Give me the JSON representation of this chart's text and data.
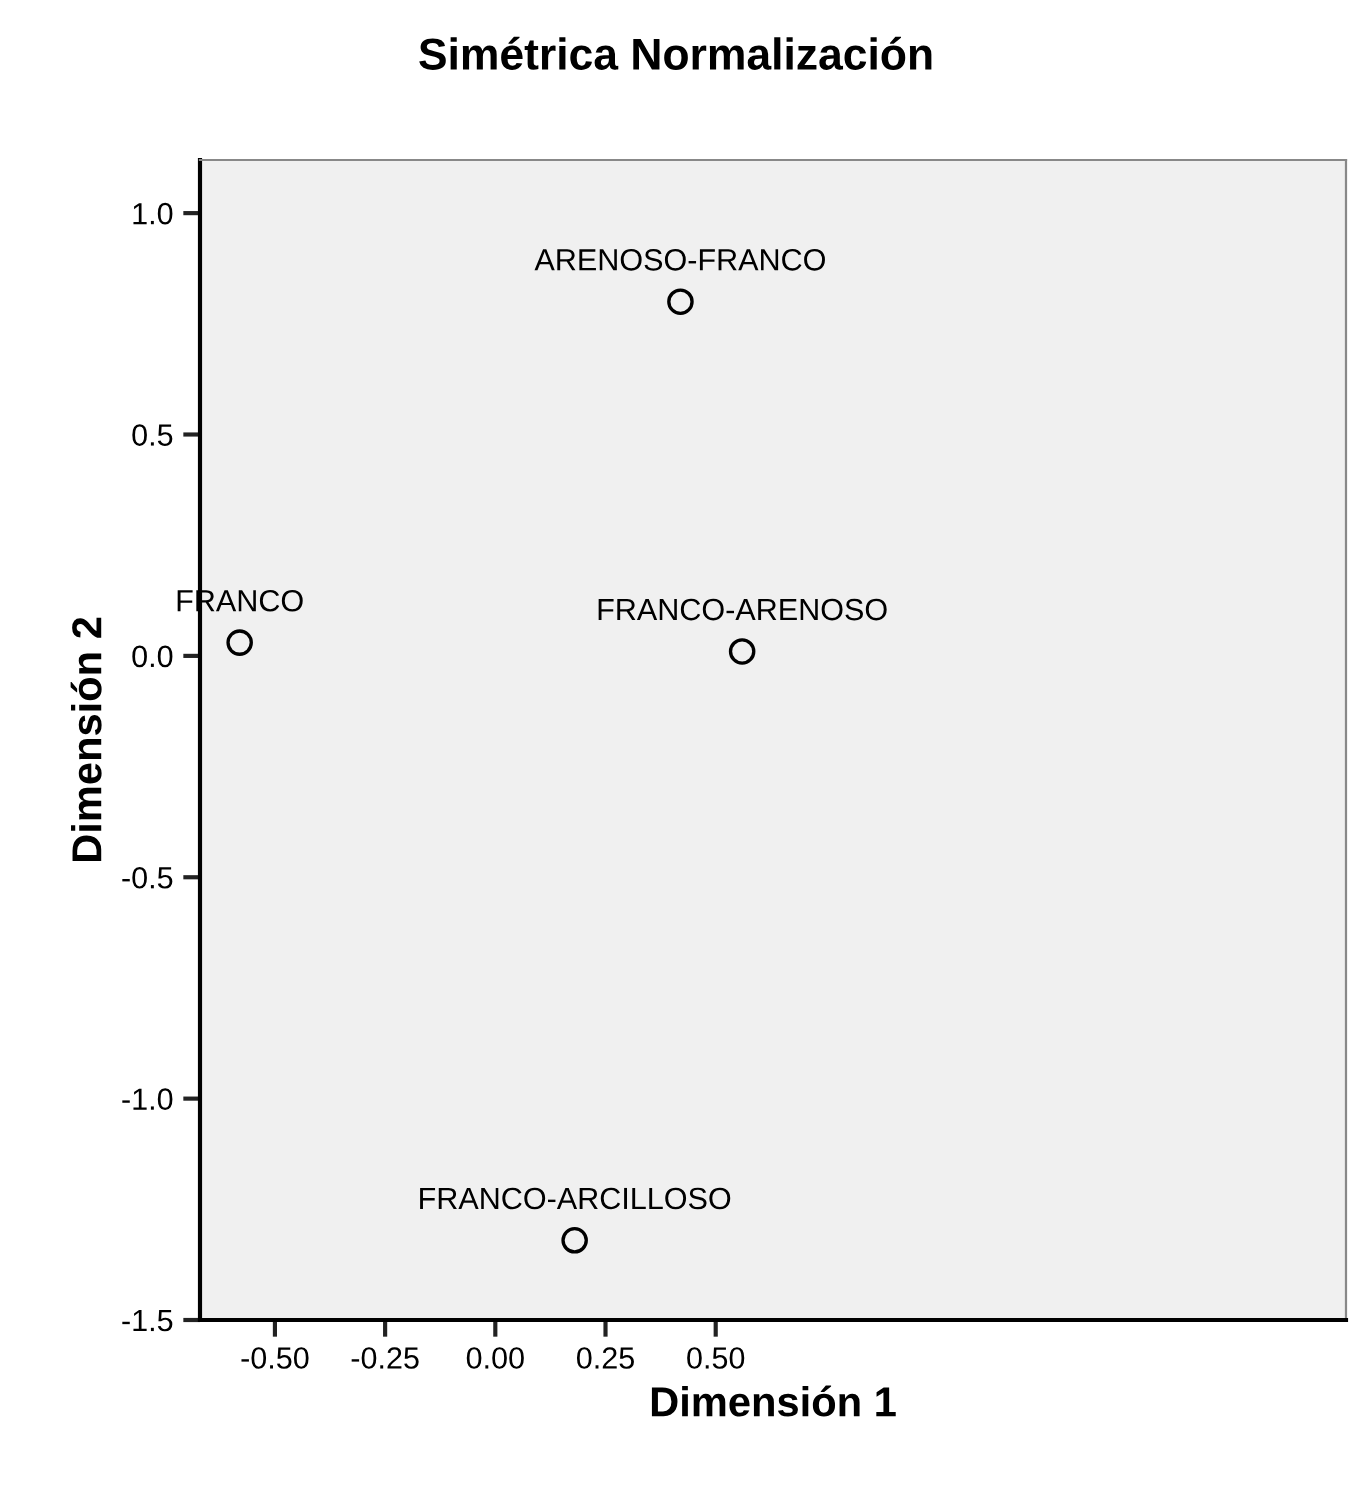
{
  "chart_data": {
    "type": "scatter",
    "title": "Simétrica Normalización",
    "xlabel": "Dimensión 1",
    "ylabel": "Dimensión 2",
    "x": [
      -0.58,
      0.42,
      0.56,
      0.18
    ],
    "series": [
      {
        "color": "#000000",
        "values": [
          0.03,
          0.8,
          0.01,
          -1.32
        ]
      }
    ],
    "annotations": [
      {
        "text": "FRANCO",
        "x": -0.58,
        "y": 0.03
      },
      {
        "text": "ARENOSO-FRANCO",
        "x": 0.42,
        "y": 0.8
      },
      {
        "text": "FRANCO-ARENOSO",
        "x": 0.56,
        "y": 0.01
      },
      {
        "text": "FRANCO-ARCILLOSO",
        "x": 0.18,
        "y": -1.32
      }
    ],
    "xlim": [
      -0.67,
      1.93
    ],
    "ylim": [
      -1.5,
      1.12
    ],
    "xticks": [
      {
        "value": -0.5,
        "label": "-0.50"
      },
      {
        "value": -0.25,
        "label": "-0.25"
      },
      {
        "value": 0,
        "label": "0.00"
      },
      {
        "value": 0.25,
        "label": "0.25"
      },
      {
        "value": 0.5,
        "label": "0.50"
      }
    ],
    "yticks": [
      {
        "value": 1.0,
        "label": "1.0"
      },
      {
        "value": 0.5,
        "label": "0.5"
      },
      {
        "value": 0.0,
        "label": "0.0"
      },
      {
        "value": -0.5,
        "label": "-0.5"
      },
      {
        "value": -1.0,
        "label": "-1.0"
      },
      {
        "value": -1.5,
        "label": "-1.5"
      }
    ],
    "grid": false,
    "legend": false,
    "marker": "circle"
  }
}
